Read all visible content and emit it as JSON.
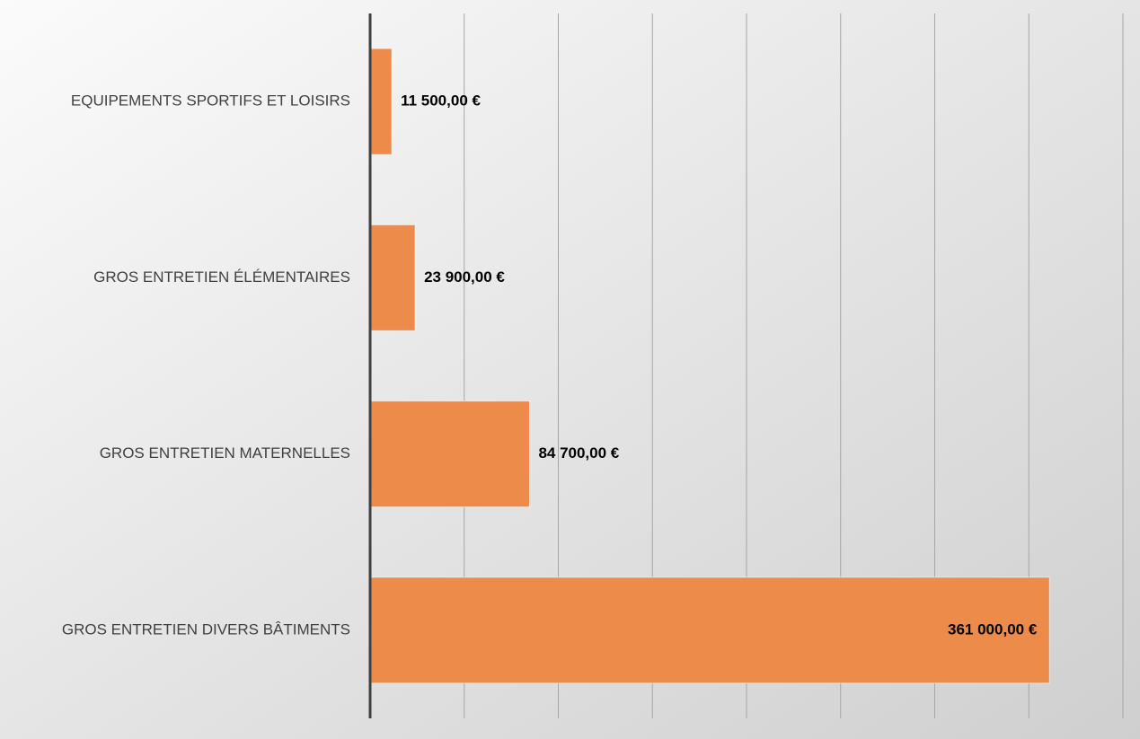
{
  "chart_data": {
    "type": "hbar",
    "categories": [
      "EQUIPEMENTS SPORTIFS ET LOISIRS",
      "GROS ENTRETIEN ÉLÉMENTAIRES",
      "GROS ENTRETIEN MATERNELLES",
      "GROS ENTRETIEN DIVERS BÂTIMENTS"
    ],
    "values": [
      11500,
      23900,
      84700,
      361000
    ],
    "value_labels": [
      "11 500,00 €",
      "23 900,00 €",
      "84 700,00 €",
      "361 000,00 €"
    ],
    "color": "#ed8b4a",
    "xlim": [
      0,
      400000
    ],
    "xticks": [
      0,
      50000,
      100000,
      150000,
      200000,
      250000,
      300000,
      350000,
      400000
    ],
    "grid": true
  }
}
